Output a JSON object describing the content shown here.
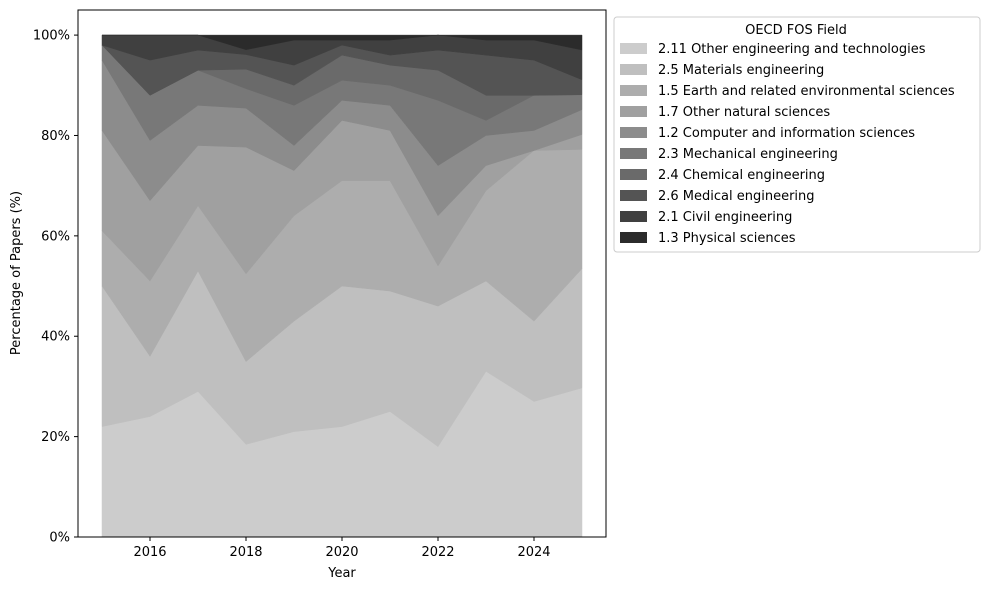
{
  "chart_data": {
    "type": "area",
    "stacked": true,
    "xlabel": "Year",
    "ylabel": "Percentage of Papers (%)",
    "x": [
      2015,
      2016,
      2017,
      2018,
      2019,
      2020,
      2021,
      2022,
      2023,
      2024,
      2025
    ],
    "xticks": [
      "2016",
      "2018",
      "2020",
      "2022",
      "2024"
    ],
    "ylim": [
      0,
      105
    ],
    "yticks": [
      "0%",
      "20%",
      "40%",
      "60%",
      "80%",
      "100%"
    ],
    "grid": false,
    "legend": {
      "title": "OECD FOS Field",
      "position": "outside-right"
    },
    "series": [
      {
        "name": "2.11 Other engineering and technologies",
        "color": "#cccccc",
        "values": [
          22,
          24,
          29,
          19,
          21,
          22,
          25,
          18,
          33,
          27,
          30
        ]
      },
      {
        "name": "2.5 Materials engineering",
        "color": "#bfbfbf",
        "values": [
          28,
          12,
          24,
          17,
          22,
          28,
          24,
          28,
          18,
          16,
          24
        ]
      },
      {
        "name": "1.5 Earth and related environmental sciences",
        "color": "#adadad",
        "values": [
          11,
          15,
          13,
          18,
          21,
          21,
          22,
          8,
          18,
          34,
          24
        ]
      },
      {
        "name": "1.7 Other natural sciences",
        "color": "#a0a0a0",
        "values": [
          20,
          16,
          12,
          26,
          9,
          12,
          10,
          10,
          5,
          0,
          3
        ]
      },
      {
        "name": "1.2 Computer and information sciences",
        "color": "#8c8c8c",
        "values": [
          14,
          12,
          8,
          8,
          5,
          4,
          5,
          10,
          6,
          4,
          5
        ]
      },
      {
        "name": "2.3 Mechanical engineering",
        "color": "#787878",
        "values": [
          3,
          9,
          7,
          4,
          8,
          4,
          4,
          13,
          3,
          7,
          3
        ]
      },
      {
        "name": "2.4 Chemical engineering",
        "color": "#6a6a6a",
        "values": [
          0,
          0,
          0,
          4,
          4,
          5,
          4,
          6,
          5,
          0,
          0
        ]
      },
      {
        "name": "2.6 Medical engineering",
        "color": "#545454",
        "values": [
          0,
          7,
          4,
          3,
          4,
          2,
          2,
          4,
          8,
          7,
          3
        ]
      },
      {
        "name": "2.1 Civil engineering",
        "color": "#404040",
        "values": [
          2,
          5,
          3,
          1,
          5,
          1,
          3,
          3,
          3,
          4,
          6
        ]
      },
      {
        "name": "1.3 Physical sciences",
        "color": "#2b2b2b",
        "values": [
          0,
          0,
          0,
          3,
          1,
          1,
          1,
          0,
          1,
          1,
          3
        ]
      }
    ]
  }
}
